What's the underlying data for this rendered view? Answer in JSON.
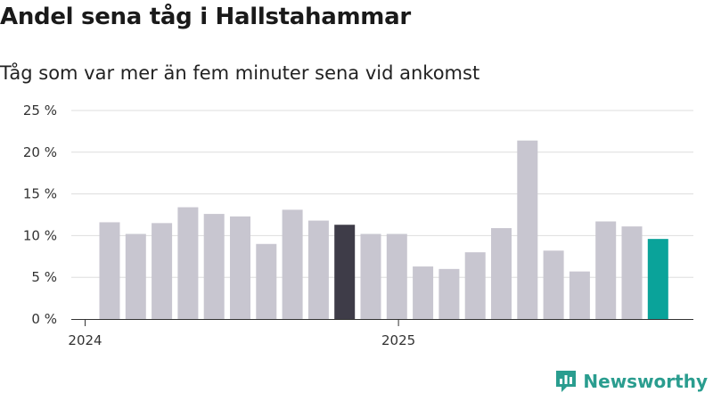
{
  "title": "Andel sena tåg i Hallstahammar",
  "subtitle": "Tåg som var mer än fem minuter sena vid ankomst",
  "brand": "Newsworthy",
  "colors": {
    "default": "#c8c6d0",
    "highlight_dark": "#3e3c48",
    "highlight_teal": "#0aa39a",
    "brand": "#2a9d8f"
  },
  "chart_data": {
    "type": "bar",
    "title": "Andel sena tåg i Hallstahammar",
    "subtitle": "Tåg som var mer än fem minuter sena vid ankomst",
    "categories": [
      "2024-01",
      "2024-02",
      "2024-03",
      "2024-04",
      "2024-05",
      "2024-06",
      "2024-07",
      "2024-08",
      "2024-09",
      "2024-10",
      "2024-11",
      "2024-12",
      "2025-01",
      "2025-02",
      "2025-03",
      "2025-04",
      "2025-05",
      "2025-06",
      "2025-07",
      "2025-08",
      "2025-09",
      "2025-10"
    ],
    "values": [
      11.6,
      10.2,
      11.5,
      13.4,
      12.6,
      12.3,
      9.0,
      13.1,
      11.8,
      11.3,
      10.2,
      10.2,
      6.3,
      6.0,
      8.0,
      10.9,
      21.4,
      8.2,
      5.7,
      11.7,
      11.1,
      9.6
    ],
    "highlight": {
      "9": "highlight_dark",
      "21": "highlight_teal"
    },
    "x_tick_labels": [
      {
        "index": 0,
        "label": "2024"
      },
      {
        "index": 12,
        "label": "2025"
      }
    ],
    "yticks": [
      "0 %",
      "5 %",
      "10 %",
      "15 %",
      "20 %",
      "25 %"
    ],
    "ylim": [
      0,
      25
    ],
    "unit": "%",
    "grid": true,
    "legend": "none"
  }
}
